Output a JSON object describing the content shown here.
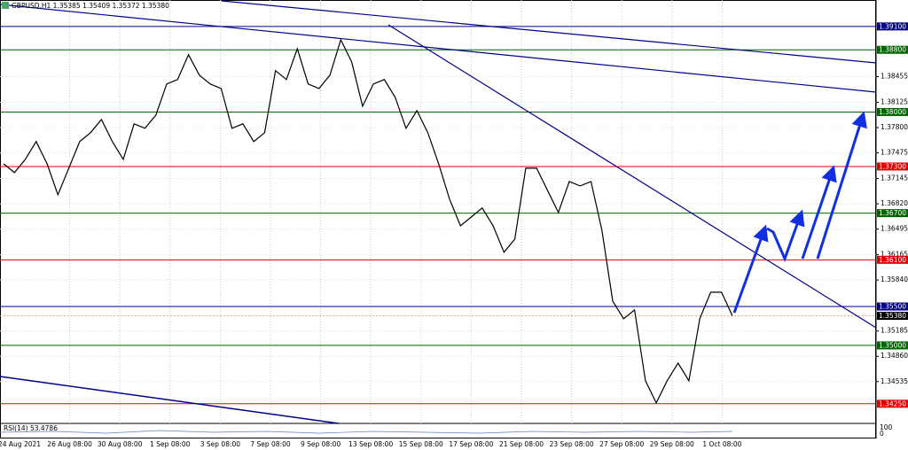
{
  "chart_data": {
    "type": "line",
    "title": "GBPUSD,H1  1.35385 1.35409 1.35372 1.35380",
    "x_labels": [
      "24 Aug 2021",
      "26 Aug 08:00",
      "30 Aug 08:00",
      "1 Sep 08:00",
      "3 Sep 08:00",
      "7 Sep 08:00",
      "9 Sep 08:00",
      "13 Sep 08:00",
      "15 Sep 08:00",
      "17 Sep 08:00",
      "21 Sep 08:00",
      "23 Sep 08:00",
      "27 Sep 08:00",
      "29 Sep 08:00",
      "1 Oct 08:00"
    ],
    "series": [
      {
        "name": "GBPUSD",
        "color": "#000000",
        "values": [
          1.37335,
          1.37221,
          1.37392,
          1.3762,
          1.37335,
          1.36937,
          1.37278,
          1.3762,
          1.37734,
          1.37904,
          1.3762,
          1.37392,
          1.37848,
          1.37791,
          1.37961,
          1.3836,
          1.38417,
          1.38736,
          1.38474,
          1.3836,
          1.38303,
          1.37791,
          1.37848,
          1.3762,
          1.37734,
          1.38531,
          1.38417,
          1.38815,
          1.3836,
          1.38303,
          1.38474,
          1.38929,
          1.38645,
          1.38075,
          1.3836,
          1.38417,
          1.38189,
          1.37791,
          1.38018,
          1.37734,
          1.37335,
          1.3688,
          1.36538,
          1.36652,
          1.36766,
          1.36538,
          1.36197,
          1.36367,
          1.37278,
          1.37278,
          1.36994,
          1.36709,
          1.37107,
          1.3705,
          1.37107,
          1.36481,
          1.3557,
          1.35343,
          1.35456,
          1.34546,
          1.34261,
          1.34546,
          1.34773,
          1.34546,
          1.35343,
          1.35684,
          1.35684,
          1.3538
        ]
      }
    ],
    "ylim": [
      1.3402,
      1.3944
    ],
    "yticks": [
      1.38455,
      1.38125,
      {
        "value": 1.378,
        "label": "1.37800"
      },
      1.37475,
      1.37145,
      {
        "value": 1.3682,
        "label": "1.36820"
      },
      1.36495,
      1.36165,
      {
        "value": 1.3584,
        "label": "1.35840"
      },
      1.35185,
      {
        "value": 1.3486,
        "label": "1.34860"
      },
      1.34535
    ],
    "levels": [
      {
        "value": 1.391,
        "label": "1.39100",
        "color": "#000080"
      },
      {
        "value": 1.388,
        "label": "1.38800",
        "color": "#006400"
      },
      {
        "value": 1.38,
        "label": "1.38000",
        "color": "#006400"
      },
      {
        "value": 1.373,
        "label": "1.37300",
        "color": "#e00000"
      },
      {
        "value": 1.367,
        "label": "1.36700",
        "color": "#006400"
      },
      {
        "value": 1.361,
        "label": "1.36100",
        "color": "#e00000"
      },
      {
        "value": 1.355,
        "label": "1.35500",
        "color": "#000080"
      },
      {
        "value": 1.3538,
        "label": "1.35380",
        "color": "#000000"
      },
      {
        "value": 1.35,
        "label": "1.35000",
        "color": "#006400"
      },
      {
        "value": 1.3425,
        "label": "1.34250",
        "color": "#e00000"
      }
    ],
    "rsi_label": "RSI(14) 53.4786",
    "rsi_ticks": [
      100,
      0
    ]
  }
}
